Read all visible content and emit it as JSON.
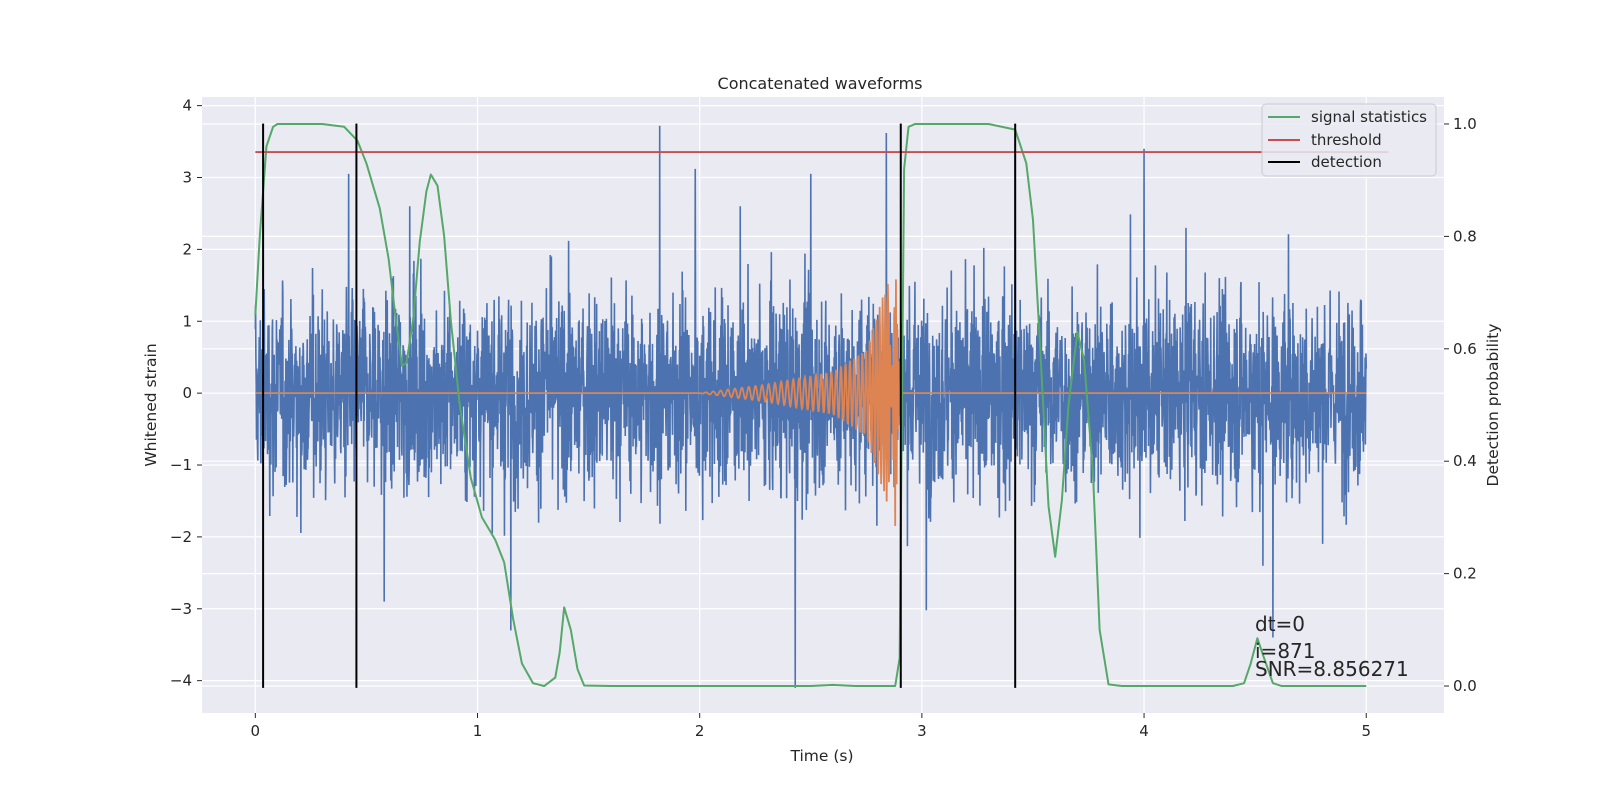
{
  "chart_data": {
    "type": "line",
    "title": "Concatenated waveforms",
    "xlabel": "Time (s)",
    "ylabel": "Whitened strain",
    "y2label": "Detection probability",
    "xlim": [
      -0.24,
      5.35
    ],
    "ylim": [
      -4.45,
      4.12
    ],
    "y2lim": [
      -0.048,
      1.048
    ],
    "grid": true,
    "legend_position": "top-right",
    "x_ticks": [
      {
        "value": 0,
        "label": "0"
      },
      {
        "value": 1,
        "label": "1"
      },
      {
        "value": 2,
        "label": "2"
      },
      {
        "value": 3,
        "label": "3"
      },
      {
        "value": 4,
        "label": "4"
      },
      {
        "value": 5,
        "label": "5"
      }
    ],
    "y_ticks": [
      {
        "value": 4,
        "label": "4"
      },
      {
        "value": 3,
        "label": "3"
      },
      {
        "value": 2,
        "label": "2"
      },
      {
        "value": 1,
        "label": "1"
      },
      {
        "value": 0,
        "label": "0"
      },
      {
        "value": -1,
        "label": "−1"
      },
      {
        "value": -2,
        "label": "−2"
      },
      {
        "value": -3,
        "label": "−3"
      },
      {
        "value": -4,
        "label": "−4"
      }
    ],
    "y2_ticks": [
      {
        "value": 1.0,
        "label": "1.0"
      },
      {
        "value": 0.8,
        "label": "0.8"
      },
      {
        "value": 0.6,
        "label": "0.6"
      },
      {
        "value": 0.4,
        "label": "0.4"
      },
      {
        "value": 0.2,
        "label": "0.2"
      },
      {
        "value": 0.0,
        "label": "0.0"
      }
    ],
    "series": [
      {
        "color": "#4c72b0",
        "axis": "left",
        "description": "noisy whitened strain, roughly ±1.5 with spikes to ±3.7",
        "x_range": [
          0,
          5
        ],
        "spikes": [
          {
            "x": 1.82,
            "y": 3.72
          },
          {
            "x": 2.84,
            "y": 3.62
          },
          {
            "x": 3.42,
            "y": 3.5
          },
          {
            "x": 4.0,
            "y": 3.4
          },
          {
            "x": 2.43,
            "y": -4.1
          },
          {
            "x": 2.5,
            "y": 3.05
          },
          {
            "x": 1.98,
            "y": 3.12
          },
          {
            "x": 0.42,
            "y": 3.05
          },
          {
            "x": 4.58,
            "y": -3.4
          },
          {
            "x": 3.02,
            "y": -3.02
          },
          {
            "x": 1.15,
            "y": -3.3
          },
          {
            "x": 0.58,
            "y": -2.9
          }
        ]
      },
      {
        "color": "#dd8452",
        "axis": "left",
        "description": "injected chirp signal",
        "points": [
          [
            0,
            0
          ],
          [
            2.0,
            0
          ],
          [
            2.3,
            0.12
          ],
          [
            2.6,
            0.3
          ],
          [
            2.75,
            0.6
          ],
          [
            2.85,
            1.6
          ],
          [
            2.88,
            -1.9
          ],
          [
            2.9,
            0
          ],
          [
            5.0,
            0
          ]
        ]
      },
      {
        "name": "signal statistics",
        "color": "#55a868",
        "axis": "right",
        "points": [
          [
            0.0,
            0.66
          ],
          [
            0.02,
            0.8
          ],
          [
            0.05,
            0.96
          ],
          [
            0.08,
            0.995
          ],
          [
            0.1,
            1.0
          ],
          [
            0.3,
            1.0
          ],
          [
            0.4,
            0.995
          ],
          [
            0.46,
            0.97
          ],
          [
            0.5,
            0.93
          ],
          [
            0.56,
            0.85
          ],
          [
            0.6,
            0.76
          ],
          [
            0.63,
            0.66
          ],
          [
            0.66,
            0.57
          ],
          [
            0.68,
            0.575
          ],
          [
            0.71,
            0.65
          ],
          [
            0.74,
            0.79
          ],
          [
            0.77,
            0.88
          ],
          [
            0.79,
            0.91
          ],
          [
            0.82,
            0.89
          ],
          [
            0.85,
            0.8
          ],
          [
            0.88,
            0.65
          ],
          [
            0.92,
            0.5
          ],
          [
            0.97,
            0.37
          ],
          [
            1.02,
            0.3
          ],
          [
            1.08,
            0.26
          ],
          [
            1.12,
            0.22
          ],
          [
            1.16,
            0.12
          ],
          [
            1.2,
            0.04
          ],
          [
            1.25,
            0.005
          ],
          [
            1.3,
            0.0
          ],
          [
            1.35,
            0.015
          ],
          [
            1.37,
            0.06
          ],
          [
            1.39,
            0.14
          ],
          [
            1.42,
            0.1
          ],
          [
            1.45,
            0.03
          ],
          [
            1.48,
            0.001
          ],
          [
            1.6,
            0.0
          ],
          [
            2.0,
            0.0
          ],
          [
            2.5,
            0.0
          ],
          [
            2.6,
            0.002
          ],
          [
            2.7,
            0.0
          ],
          [
            2.88,
            0.0
          ],
          [
            2.9,
            0.05
          ],
          [
            2.92,
            0.92
          ],
          [
            2.94,
            0.995
          ],
          [
            2.97,
            1.0
          ],
          [
            3.3,
            1.0
          ],
          [
            3.42,
            0.99
          ],
          [
            3.47,
            0.93
          ],
          [
            3.5,
            0.83
          ],
          [
            3.53,
            0.62
          ],
          [
            3.57,
            0.32
          ],
          [
            3.6,
            0.23
          ],
          [
            3.63,
            0.33
          ],
          [
            3.66,
            0.5
          ],
          [
            3.7,
            0.63
          ],
          [
            3.73,
            0.58
          ],
          [
            3.77,
            0.38
          ],
          [
            3.8,
            0.1
          ],
          [
            3.84,
            0.003
          ],
          [
            3.9,
            0.0
          ],
          [
            4.4,
            0.0
          ],
          [
            4.45,
            0.005
          ],
          [
            4.48,
            0.04
          ],
          [
            4.51,
            0.085
          ],
          [
            4.54,
            0.05
          ],
          [
            4.58,
            0.005
          ],
          [
            4.62,
            0.0
          ],
          [
            5.0,
            0.0
          ]
        ]
      },
      {
        "name": "threshold",
        "color": "#c44e52",
        "axis": "right",
        "points": [
          [
            0,
            0.95
          ],
          [
            5.1,
            0.95
          ]
        ]
      }
    ],
    "detections": {
      "name": "detection",
      "color": "#000000",
      "x": [
        0.035,
        0.455,
        2.905,
        3.42
      ],
      "y_range": [
        -4.1,
        3.75
      ]
    },
    "annotations": [
      "dt=0",
      "i=871",
      "SNR=8.856271"
    ]
  }
}
